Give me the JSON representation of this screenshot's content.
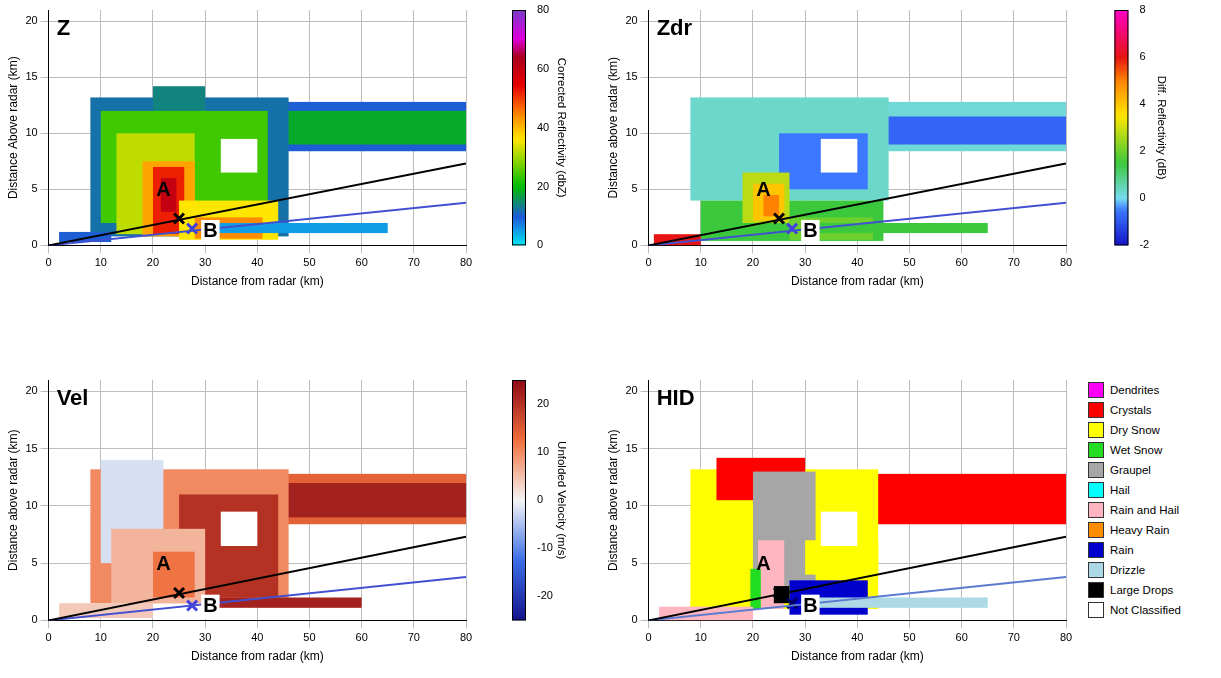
{
  "chart_data": [
    {
      "type": "heatmap",
      "title": "Z",
      "x_label": "Distance from radar (km)",
      "y_label": "Distance Above radar (km)",
      "xlim": [
        0,
        80
      ],
      "ylim": [
        0,
        21
      ],
      "xticks": [
        0,
        10,
        20,
        30,
        40,
        50,
        60,
        70,
        80
      ],
      "yticks": [
        0,
        5,
        10,
        15,
        20
      ],
      "grid": true,
      "colorbar": {
        "label": "Corrected Reflectivity (dbZ)",
        "range": [
          0,
          80
        ],
        "ticks": [
          0,
          20,
          40,
          60,
          80
        ]
      },
      "cells": [
        [
          40,
          80,
          8.4,
          12.8,
          10
        ],
        [
          42,
          80,
          9,
          12,
          18
        ],
        [
          8,
          46,
          0.8,
          13.2,
          12
        ],
        [
          20,
          30,
          12,
          14.2,
          14
        ],
        [
          10,
          42,
          2,
          12,
          24
        ],
        [
          13,
          28,
          1,
          10,
          32
        ],
        [
          18,
          28,
          0.8,
          7.5,
          42
        ],
        [
          20,
          26,
          1,
          7,
          52
        ],
        [
          21.5,
          24.5,
          3,
          6,
          60
        ],
        [
          25,
          44,
          0.5,
          4,
          36
        ],
        [
          28,
          41,
          0.6,
          2.5,
          44
        ],
        [
          33,
          40,
          6.5,
          9.5,
          null
        ],
        [
          30,
          65,
          1.1,
          2,
          5
        ],
        [
          2,
          12,
          0.3,
          1.2,
          10
        ]
      ],
      "lines": [
        {
          "color": "#000000",
          "x": [
            0,
            80
          ],
          "values": [
            0,
            7.3
          ]
        },
        {
          "color": "#4050d0",
          "x": [
            0,
            80
          ],
          "values": [
            0,
            3.8
          ]
        }
      ],
      "markers": [
        {
          "x": 25,
          "y": 2.4,
          "color": "#000000",
          "marker": "x"
        },
        {
          "x": 27.5,
          "y": 1.5,
          "color": "#4040e0",
          "marker": "x"
        }
      ],
      "annotations": [
        {
          "text": "A",
          "x": 22,
          "y": 4.9
        },
        {
          "text": "B",
          "x": 31,
          "y": 1.2
        }
      ]
    },
    {
      "type": "heatmap",
      "title": "Zdr",
      "x_label": "Distance from radar (km)",
      "y_label": "Distance above radar (km)",
      "xlim": [
        0,
        80
      ],
      "ylim": [
        0,
        21
      ],
      "xticks": [
        0,
        10,
        20,
        30,
        40,
        50,
        60,
        70,
        80
      ],
      "yticks": [
        0,
        5,
        10,
        15,
        20
      ],
      "grid": true,
      "colorbar": {
        "label": "Diff. Reflectivity (dB)",
        "range": [
          -2,
          8
        ],
        "ticks": [
          -2,
          0,
          2,
          4,
          6,
          8
        ]
      },
      "cells": [
        [
          40,
          80,
          8.4,
          12.8,
          0.2
        ],
        [
          44,
          80,
          9,
          11.5,
          -0.8
        ],
        [
          8,
          46,
          4,
          13.2,
          0.3
        ],
        [
          25,
          42,
          5,
          10,
          -0.5
        ],
        [
          10,
          45,
          0.4,
          4,
          1.5
        ],
        [
          18,
          27,
          2,
          6.5,
          2.8
        ],
        [
          20,
          26,
          2.2,
          5.5,
          4
        ],
        [
          22,
          25,
          2.6,
          4.5,
          5
        ],
        [
          27,
          43,
          0.5,
          2.5,
          2
        ],
        [
          33,
          40,
          6.5,
          9.5,
          null
        ],
        [
          30,
          65,
          1.1,
          2,
          1.5
        ],
        [
          1,
          10,
          0,
          1,
          6
        ]
      ],
      "lines": [
        {
          "color": "#000000",
          "x": [
            0,
            80
          ],
          "values": [
            0,
            7.3
          ]
        },
        {
          "color": "#4050d0",
          "x": [
            0,
            80
          ],
          "values": [
            0,
            3.8
          ]
        }
      ],
      "markers": [
        {
          "x": 25,
          "y": 2.4,
          "color": "#000000",
          "marker": "x"
        },
        {
          "x": 27.5,
          "y": 1.5,
          "color": "#4040e0",
          "marker": "x"
        }
      ],
      "annotations": [
        {
          "text": "A",
          "x": 22,
          "y": 4.9
        },
        {
          "text": "B",
          "x": 31,
          "y": 1.2
        }
      ]
    },
    {
      "type": "heatmap",
      "title": "Vel",
      "x_label": "Distance from radar (km)",
      "y_label": "Distance above radar (km)",
      "xlim": [
        0,
        80
      ],
      "ylim": [
        0,
        21
      ],
      "xticks": [
        0,
        10,
        20,
        30,
        40,
        50,
        60,
        70,
        80
      ],
      "yticks": [
        0,
        5,
        10,
        15,
        20
      ],
      "grid": true,
      "colorbar": {
        "label": "Unfolded Velocity (m/s)",
        "range": [
          -25,
          25
        ],
        "ticks": [
          -20,
          -10,
          0,
          10,
          20
        ]
      },
      "cells": [
        [
          40,
          80,
          8.4,
          12.8,
          14
        ],
        [
          42,
          80,
          9,
          12,
          22
        ],
        [
          8,
          46,
          1.5,
          13.2,
          10
        ],
        [
          10,
          22,
          5,
          14,
          -2
        ],
        [
          25,
          44,
          2,
          11,
          20
        ],
        [
          12,
          30,
          1.5,
          8,
          6
        ],
        [
          20,
          28,
          2,
          6,
          12
        ],
        [
          33,
          40,
          6.5,
          9.5,
          null
        ],
        [
          30,
          60,
          1.1,
          2,
          22
        ],
        [
          2,
          20,
          0.2,
          1.5,
          4
        ]
      ],
      "lines": [
        {
          "color": "#000000",
          "x": [
            0,
            80
          ],
          "values": [
            0,
            7.3
          ]
        },
        {
          "color": "#4050d0",
          "x": [
            0,
            80
          ],
          "values": [
            0,
            3.8
          ]
        }
      ],
      "markers": [
        {
          "x": 25,
          "y": 2.4,
          "color": "#000000",
          "marker": "x"
        },
        {
          "x": 27.5,
          "y": 1.3,
          "color": "#4040e0",
          "marker": "x"
        }
      ],
      "annotations": [
        {
          "text": "A",
          "x": 22,
          "y": 4.9
        },
        {
          "text": "B",
          "x": 31,
          "y": 1.2
        }
      ]
    },
    {
      "type": "heatmap",
      "title": "HID",
      "x_label": "Distance from radar (km)",
      "y_label": "Distance above radar (km)",
      "xlim": [
        0,
        80
      ],
      "ylim": [
        0,
        21
      ],
      "xticks": [
        0,
        10,
        20,
        30,
        40,
        50,
        60,
        70,
        80
      ],
      "yticks": [
        0,
        5,
        10,
        15,
        20
      ],
      "grid": true,
      "legend": "right",
      "classes": [
        {
          "name": "Dendrites",
          "color": "#ff00ff"
        },
        {
          "name": "Crystals",
          "color": "#ff0000"
        },
        {
          "name": "Dry Snow",
          "color": "#ffff00"
        },
        {
          "name": "Wet Snow",
          "color": "#22dd22"
        },
        {
          "name": "Graupel",
          "color": "#a6a6a6"
        },
        {
          "name": "Hail",
          "color": "#00ffff"
        },
        {
          "name": "Rain and Hail",
          "color": "#ffb6c1"
        },
        {
          "name": "Heavy Rain",
          "color": "#ff8c00"
        },
        {
          "name": "Rain",
          "color": "#0000cd"
        },
        {
          "name": "Drizzle",
          "color": "#add8e6"
        },
        {
          "name": "Large Drops",
          "color": "#000000"
        },
        {
          "name": "Not Classified",
          "color": "#ffffff"
        }
      ],
      "cells": [
        [
          40,
          80,
          8.4,
          12.8,
          1
        ],
        [
          8,
          44,
          1,
          13.2,
          2
        ],
        [
          13,
          30,
          10.5,
          14.2,
          1
        ],
        [
          20,
          32,
          3,
          13,
          4
        ],
        [
          30,
          44,
          4,
          7,
          2
        ],
        [
          21,
          26,
          1,
          7,
          6
        ],
        [
          19.5,
          21.5,
          1,
          4.5,
          3
        ],
        [
          27,
          42,
          0.5,
          3.5,
          8
        ],
        [
          24,
          27,
          1.5,
          3,
          10
        ],
        [
          33,
          40,
          6.5,
          9.5,
          11
        ],
        [
          2,
          20,
          0,
          1.2,
          6
        ],
        [
          30,
          65,
          1.1,
          2,
          9
        ]
      ],
      "lines": [
        {
          "color": "#000000",
          "x": [
            0,
            80
          ],
          "values": [
            0,
            7.3
          ]
        },
        {
          "color": "#5a7ad0",
          "x": [
            0,
            80
          ],
          "values": [
            0,
            3.8
          ]
        }
      ],
      "markers": [
        {
          "x": 25,
          "y": 2.4,
          "color": "#000000",
          "marker": "x"
        },
        {
          "x": 27.5,
          "y": 1.5,
          "color": "#000060",
          "marker": "x"
        }
      ],
      "annotations": [
        {
          "text": "A",
          "x": 22,
          "y": 4.9
        },
        {
          "text": "B",
          "x": 31,
          "y": 1.2
        }
      ]
    }
  ]
}
